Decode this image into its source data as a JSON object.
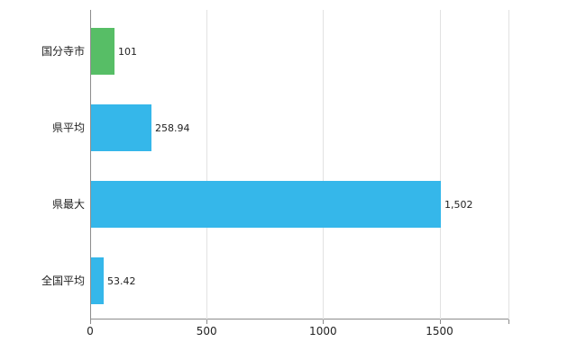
{
  "chart_data": {
    "type": "bar",
    "orientation": "horizontal",
    "title": "",
    "xlabel": "",
    "ylabel": "",
    "categories": [
      "国分寺市",
      "県平均",
      "県最大",
      "全国平均"
    ],
    "values": [
      101,
      258.94,
      1502,
      53.42
    ],
    "value_labels": [
      "101",
      "258.94",
      "1,502",
      "53.42"
    ],
    "bar_colors": [
      "#57be66",
      "#35b7ea",
      "#35b7ea",
      "#35b7ea"
    ],
    "xlim": [
      0,
      1800
    ],
    "xticks": [
      0,
      500,
      1000,
      1500
    ],
    "xtick_labels": [
      "0",
      "500",
      "1000",
      "1500"
    ],
    "grid": true,
    "legend": "none",
    "colors": {
      "axis": "#8c8c8c",
      "gridline": "#e2e2e2",
      "text": "#222222",
      "background": "#ffffff"
    }
  }
}
